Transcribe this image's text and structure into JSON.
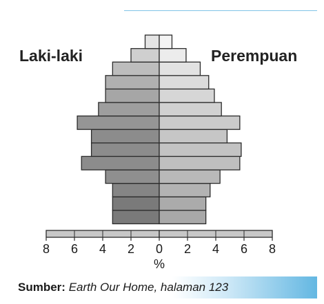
{
  "chart_data": {
    "type": "bar",
    "subtype": "population-pyramid",
    "left_label": "Laki-laki",
    "right_label": "Perempuan",
    "xlabel": "%",
    "x_tick_labels": [
      "8",
      "6",
      "4",
      "2",
      "0",
      "2",
      "4",
      "6",
      "8"
    ],
    "xlim": [
      -8,
      8
    ],
    "age_groups": 15,
    "male_values": [
      8.0,
      3.3,
      3.3,
      3.3,
      3.8,
      5.5,
      4.8,
      4.8,
      5.8,
      4.3,
      3.8,
      3.8,
      3.3,
      2.0,
      1.0
    ],
    "female_values": [
      8.0,
      3.3,
      3.3,
      3.6,
      4.3,
      5.7,
      5.8,
      4.8,
      5.7,
      4.4,
      3.9,
      3.5,
      2.9,
      1.9,
      0.9
    ],
    "colors": {
      "male_shades": [
        "#c7c7c7",
        "#7a7a7a",
        "#7a7a7a",
        "#858585",
        "#8f8f8f",
        "#8c8c8c",
        "#8c8c8c",
        "#8c8c8c",
        "#959595",
        "#9e9e9e",
        "#a6a6a6",
        "#b0b0b0",
        "#bdbdbd",
        "#cfcfcf",
        "#e4e4e4"
      ],
      "female_shades": [
        "#c7c7c7",
        "#a8a8a8",
        "#ababab",
        "#b3b3b3",
        "#b9b9b9",
        "#bfbfbf",
        "#c3c3c3",
        "#c6c6c6",
        "#cbcbcb",
        "#d1d1d1",
        "#d6d6d6",
        "#dcdcdc",
        "#e2e2e2",
        "#ececec",
        "#f4f4f4"
      ],
      "outline": "#2b2b2b"
    }
  },
  "source": {
    "label": "Sumber:",
    "value": "Earth Our Home, halaman 123"
  }
}
